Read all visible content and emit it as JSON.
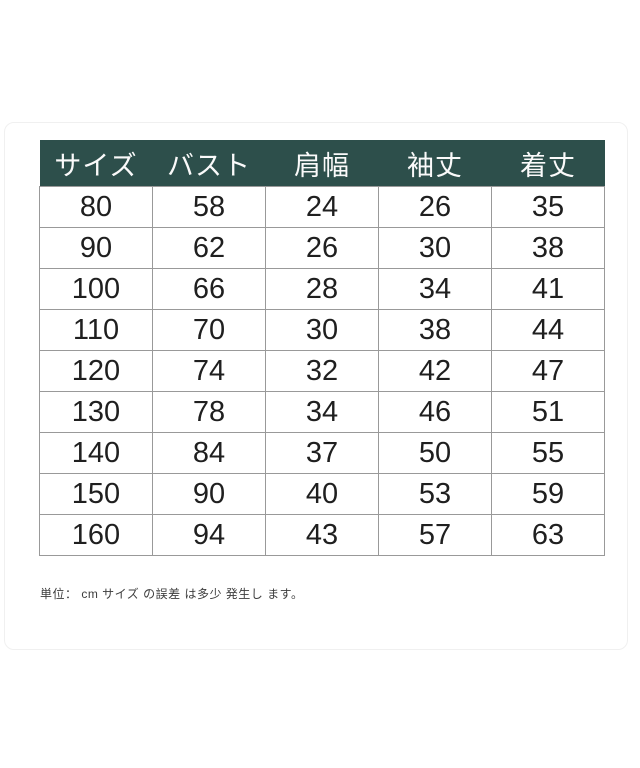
{
  "table": {
    "headers": [
      "サイズ",
      "バスト",
      "肩幅",
      "袖丈",
      "着丈"
    ],
    "rows": [
      [
        "80",
        "58",
        "24",
        "26",
        "35"
      ],
      [
        "90",
        "62",
        "26",
        "30",
        "38"
      ],
      [
        "100",
        "66",
        "28",
        "34",
        "41"
      ],
      [
        "110",
        "70",
        "30",
        "38",
        "44"
      ],
      [
        "120",
        "74",
        "32",
        "42",
        "47"
      ],
      [
        "130",
        "78",
        "34",
        "46",
        "51"
      ],
      [
        "140",
        "84",
        "37",
        "50",
        "55"
      ],
      [
        "150",
        "90",
        "40",
        "53",
        "59"
      ],
      [
        "160",
        "94",
        "43",
        "57",
        "63"
      ]
    ]
  },
  "footnote": "単位： cm サイズ の誤差 は多少 発生し ます。",
  "colors": {
    "header_bg": "#2d4f4b",
    "header_text": "#fafafa",
    "cell_border": "#999999",
    "card_border": "#f0f0f0",
    "body_text": "#1f1f1f",
    "footnote_text": "#3d3d3d"
  }
}
